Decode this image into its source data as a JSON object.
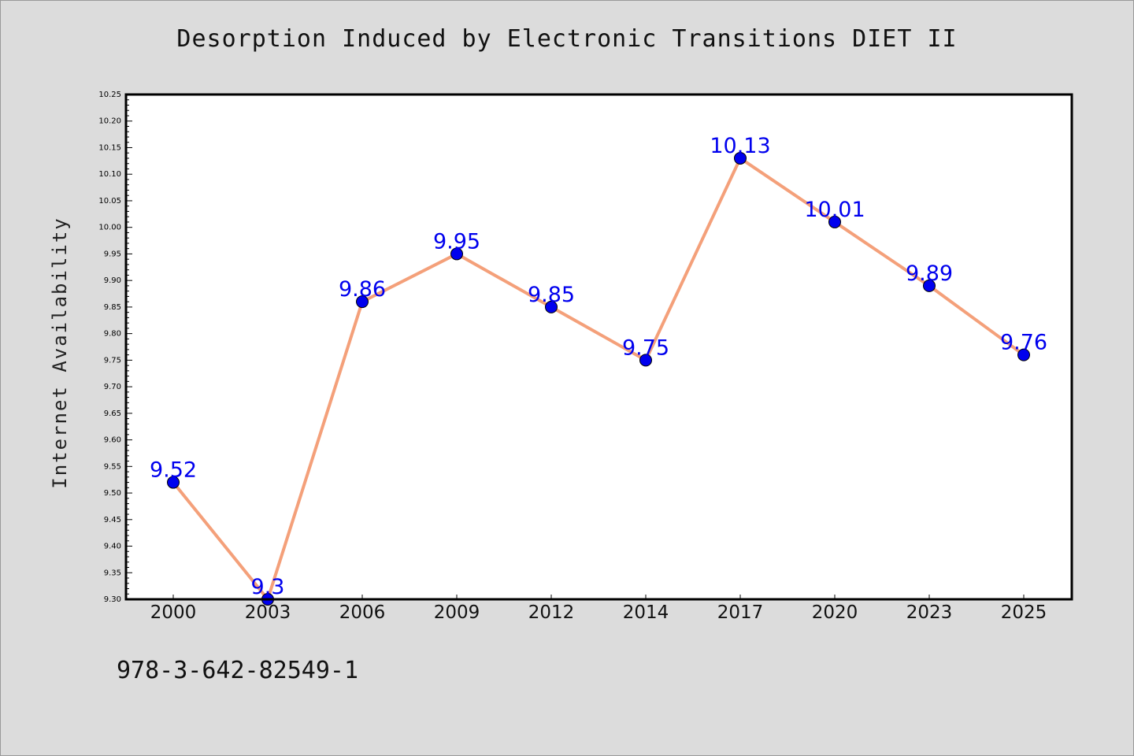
{
  "chart_data": {
    "type": "line",
    "title": "Desorption Induced by Electronic Transitions DIET II",
    "xlabel": "",
    "ylabel": "Internet Availability",
    "categories": [
      "2000",
      "2003",
      "2006",
      "2009",
      "2012",
      "2014",
      "2017",
      "2020",
      "2023",
      "2025"
    ],
    "series": [
      {
        "values": [
          9.52,
          9.3,
          9.86,
          9.95,
          9.85,
          9.75,
          10.13,
          10.01,
          9.89,
          9.76
        ],
        "labels": [
          "9.52",
          "9.3",
          "9.86",
          "9.95",
          "9.85",
          "9.75",
          "10.13",
          "10.01",
          "9.89",
          "9.76"
        ],
        "line_color": "#f4a07a",
        "marker_color": "#0000ee",
        "label_color": "#0000ee"
      }
    ],
    "ylim": [
      9.3,
      10.25
    ],
    "yticks": [
      "9.30",
      "9.35",
      "9.40",
      "9.45",
      "9.50",
      "9.55",
      "9.60",
      "9.65",
      "9.70",
      "9.75",
      "9.80",
      "9.85",
      "9.90",
      "9.95",
      "10.00",
      "10.05",
      "10.10",
      "10.15",
      "10.20",
      "10.25"
    ],
    "grid": false,
    "legend": "none",
    "background": "#dcdcdc",
    "plot_background": "#ffffff"
  },
  "footer": {
    "isbn": "978-3-642-82549-1"
  }
}
